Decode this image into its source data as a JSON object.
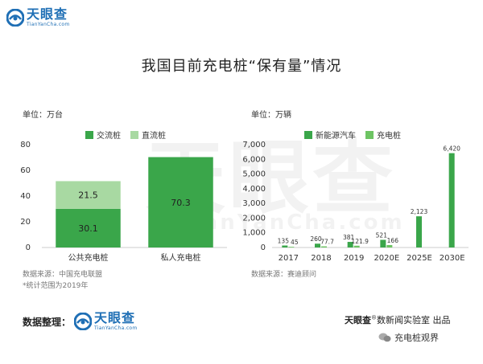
{
  "brand": {
    "name": "天眼查",
    "url_text": "TianYanCha.com"
  },
  "title": "我国目前充电桩“保有量”情况",
  "watermark": {
    "cn": "天眼查",
    "en": "TianYanCha.com"
  },
  "colors": {
    "dark_green": "#3aa64a",
    "light_green": "#a8d9a2",
    "mid_green": "#6dc463",
    "brand_blue": "#1f6fb5"
  },
  "left_chart": {
    "unit": "单位：万台",
    "source": "数据来源：中国充电联盟",
    "note": "*统计范围为2019年"
  },
  "right_chart": {
    "unit": "单位：万辆",
    "source": "数据来源：赛迪顾问"
  },
  "footer": {
    "credit_label": "数据整理：",
    "publisher": "天眼查",
    "publisher_tail": "数\u0000新闻实验室 出品",
    "wechat_text": "充电桩观界"
  },
  "chart_data": [
    {
      "type": "bar",
      "stacked": true,
      "categories": [
        "公共充电桩",
        "私人充电桩"
      ],
      "series": [
        {
          "name": "交流桩",
          "values": [
            30.1,
            70.3
          ],
          "color": "#3aa64a"
        },
        {
          "name": "直流桩",
          "values": [
            21.5,
            0
          ],
          "color": "#a8d9a2"
        }
      ],
      "data_labels": [
        [
          "30.1",
          "70.3"
        ],
        [
          "21.5",
          ""
        ]
      ],
      "ylim": [
        0,
        80
      ],
      "yticks": [
        "0",
        "20",
        "40",
        "60",
        "80"
      ],
      "legend_position": "top",
      "grid": false
    },
    {
      "type": "bar",
      "categories": [
        "2017",
        "2018",
        "2019",
        "2020E",
        "2025E",
        "2030E"
      ],
      "series": [
        {
          "name": "新能源汽车",
          "values": [
            135,
            260,
            381,
            521,
            2123,
            6420
          ],
          "color": "#3aa64a"
        },
        {
          "name": "充电桩",
          "values": [
            45,
            77.7,
            121.9,
            166,
            null,
            null
          ],
          "color": "#6dc463"
        }
      ],
      "data_labels": [
        [
          "135",
          "260",
          "381",
          "521",
          "2,123",
          "6,420"
        ],
        [
          "45",
          "77.7",
          "121.9",
          "166",
          "",
          ""
        ]
      ],
      "ylim": [
        0,
        7000
      ],
      "yticks": [
        "0",
        "1,000",
        "2,000",
        "3,000",
        "4,000",
        "5,000",
        "6,000",
        "7,000"
      ],
      "legend_position": "top",
      "grid": false
    }
  ]
}
